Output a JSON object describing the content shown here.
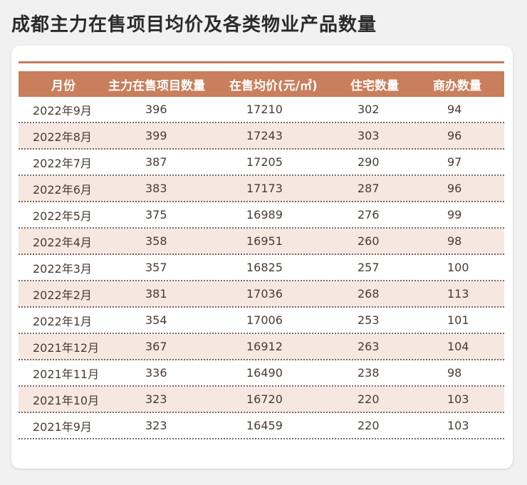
{
  "title": "成都主力在售项目均价及各类物业产品数量",
  "table": {
    "headers": [
      "月份",
      "主力在售项目数量",
      "在售均价(元/㎡)",
      "住宅数量",
      "商办数量"
    ],
    "rows": [
      [
        "2022年9月",
        "396",
        "17210",
        "302",
        "94"
      ],
      [
        "2022年8月",
        "399",
        "17243",
        "303",
        "96"
      ],
      [
        "2022年7月",
        "387",
        "17205",
        "290",
        "97"
      ],
      [
        "2022年6月",
        "383",
        "17173",
        "287",
        "96"
      ],
      [
        "2022年5月",
        "375",
        "16989",
        "276",
        "99"
      ],
      [
        "2022年4月",
        "358",
        "16951",
        "260",
        "98"
      ],
      [
        "2022年3月",
        "357",
        "16825",
        "257",
        "100"
      ],
      [
        "2022年2月",
        "381",
        "17036",
        "268",
        "113"
      ],
      [
        "2022年1月",
        "354",
        "17006",
        "253",
        "101"
      ],
      [
        "2021年12月",
        "367",
        "16912",
        "263",
        "104"
      ],
      [
        "2021年11月",
        "336",
        "16490",
        "238",
        "98"
      ],
      [
        "2021年10月",
        "323",
        "16720",
        "220",
        "103"
      ],
      [
        "2021年9月",
        "323",
        "16459",
        "220",
        "103"
      ]
    ]
  },
  "colors": {
    "header_bg": "#c97e5c",
    "alt_row_bg": "#f6e7e1",
    "rule": "#c47c5b"
  }
}
